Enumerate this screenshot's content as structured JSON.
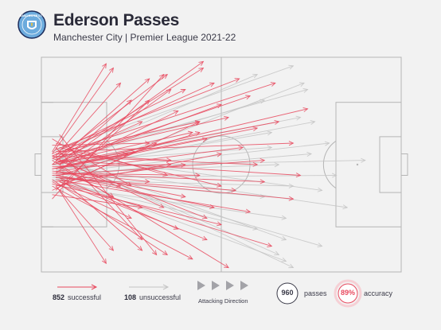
{
  "header": {
    "title": "Ederson Passes",
    "subtitle": "Manchester City | Premier League 2021-22",
    "crest_label": "MANCHESTER CITY"
  },
  "legend": {
    "successful_count": "852",
    "successful_label": "successful",
    "unsuccessful_count": "108",
    "unsuccessful_label": "unsuccessful",
    "direction_label": "Attacking Direction",
    "passes_count": "960",
    "passes_label": "passes",
    "accuracy_value": "89%",
    "accuracy_label": "accuracy"
  },
  "colors": {
    "successful": "#e84a5f",
    "unsuccessful": "#c4c4c4",
    "pitch_lines": "#b5b5b5",
    "crest_blue": "#6cabdd"
  },
  "chart_data": {
    "type": "pass-map",
    "title": "Ederson Passes",
    "subtitle": "Manchester City | Premier League 2021-22",
    "pitch": {
      "length": 100,
      "width": 100,
      "attacking_direction": "left-to-right"
    },
    "totals": {
      "passes": 960,
      "successful": 852,
      "unsuccessful": 108,
      "accuracy_pct": 89
    },
    "series": [
      {
        "name": "successful",
        "passes": [
          [
            3,
            45,
            20,
            5
          ],
          [
            4,
            46,
            22,
            12
          ],
          [
            3,
            44,
            18,
            3
          ],
          [
            5,
            50,
            25,
            20
          ],
          [
            4,
            48,
            28,
            30
          ],
          [
            3,
            52,
            24,
            45
          ],
          [
            4,
            55,
            22,
            60
          ],
          [
            3,
            58,
            25,
            75
          ],
          [
            4,
            60,
            20,
            90
          ],
          [
            5,
            62,
            18,
            96
          ],
          [
            3,
            50,
            30,
            10
          ],
          [
            4,
            47,
            35,
            8
          ],
          [
            3,
            45,
            40,
            15
          ],
          [
            5,
            52,
            38,
            25
          ],
          [
            4,
            49,
            42,
            35
          ],
          [
            3,
            51,
            36,
            50
          ],
          [
            4,
            53,
            40,
            65
          ],
          [
            5,
            56,
            38,
            80
          ],
          [
            3,
            57,
            35,
            92
          ],
          [
            4,
            48,
            45,
            5
          ],
          [
            3,
            46,
            48,
            12
          ],
          [
            5,
            50,
            50,
            22
          ],
          [
            4,
            52,
            46,
            38
          ],
          [
            3,
            54,
            44,
            55
          ],
          [
            4,
            55,
            48,
            70
          ],
          [
            5,
            58,
            46,
            85
          ],
          [
            3,
            60,
            42,
            94
          ],
          [
            4,
            43,
            55,
            10
          ],
          [
            3,
            47,
            52,
            28
          ],
          [
            5,
            53,
            56,
            42
          ],
          [
            4,
            56,
            54,
            62
          ],
          [
            3,
            59,
            50,
            78
          ],
          [
            4,
            49,
            58,
            18
          ],
          [
            5,
            51,
            60,
            33
          ],
          [
            3,
            55,
            62,
            48
          ],
          [
            4,
            57,
            58,
            72
          ],
          [
            5,
            45,
            65,
            12
          ],
          [
            3,
            50,
            66,
            30
          ],
          [
            4,
            54,
            62,
            58
          ],
          [
            5,
            58,
            64,
            88
          ],
          [
            3,
            41,
            30,
            40
          ],
          [
            4,
            40,
            35,
            55
          ],
          [
            3,
            38,
            25,
            60
          ],
          [
            5,
            60,
            32,
            40
          ],
          [
            4,
            62,
            30,
            20
          ],
          [
            3,
            64,
            28,
            70
          ],
          [
            4,
            42,
            28,
            85
          ],
          [
            5,
            36,
            32,
            92
          ],
          [
            3,
            66,
            34,
            8
          ],
          [
            4,
            44,
            70,
            40
          ],
          [
            5,
            48,
            72,
            55
          ],
          [
            3,
            52,
            74,
            24
          ],
          [
            4,
            56,
            70,
            66
          ],
          [
            5,
            50,
            45,
            2
          ],
          [
            3,
            48,
            52,
            98
          ],
          [
            4,
            45,
            36,
            48
          ],
          [
            5,
            55,
            44,
            35
          ],
          [
            3,
            53,
            30,
            58
          ],
          [
            4,
            49,
            26,
            44
          ],
          [
            5,
            51,
            20,
            65
          ],
          [
            3,
            47,
            46,
            75
          ],
          [
            4,
            58,
            40,
            50
          ],
          [
            5,
            44,
            44,
            30
          ],
          [
            3,
            46,
            34,
            70
          ],
          [
            4,
            60,
            50,
            45
          ],
          [
            5,
            42,
            50,
            60
          ],
          [
            3,
            62,
            44,
            30
          ],
          [
            4,
            54,
            36,
            15
          ],
          [
            5,
            56,
            28,
            90
          ],
          [
            3,
            46,
            60,
            50
          ]
        ]
      },
      {
        "name": "unsuccessful",
        "passes": [
          [
            4,
            48,
            60,
            8
          ],
          [
            3,
            50,
            62,
            20
          ],
          [
            5,
            52,
            64,
            35
          ],
          [
            4,
            54,
            66,
            50
          ],
          [
            3,
            56,
            62,
            65
          ],
          [
            5,
            58,
            60,
            80
          ],
          [
            4,
            46,
            66,
            92
          ],
          [
            3,
            44,
            70,
            4
          ],
          [
            5,
            50,
            72,
            28
          ],
          [
            4,
            55,
            75,
            45
          ],
          [
            3,
            57,
            70,
            60
          ],
          [
            5,
            60,
            68,
            75
          ],
          [
            4,
            52,
            78,
            88
          ],
          [
            3,
            48,
            74,
            15
          ],
          [
            5,
            54,
            80,
            40
          ],
          [
            4,
            56,
            82,
            55
          ],
          [
            3,
            50,
            85,
            70
          ],
          [
            5,
            46,
            70,
            98
          ],
          [
            4,
            53,
            76,
            30
          ],
          [
            3,
            55,
            68,
            95
          ],
          [
            4,
            49,
            64,
            42
          ],
          [
            5,
            51,
            90,
            48
          ],
          [
            3,
            58,
            73,
            12
          ],
          [
            4,
            45,
            78,
            62
          ],
          [
            5,
            47,
            68,
            85
          ]
        ]
      }
    ]
  }
}
